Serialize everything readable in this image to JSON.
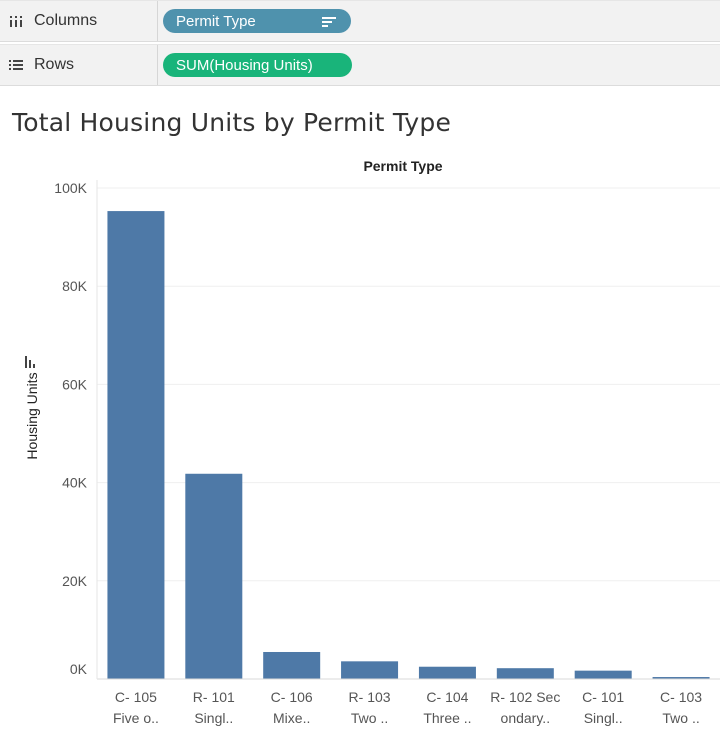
{
  "shelves": {
    "columns": {
      "label": "Columns",
      "pill": "Permit Type"
    },
    "rows": {
      "label": "Rows",
      "pill": "SUM(Housing Units)"
    }
  },
  "colors": {
    "bar": "#4e79a7",
    "dimension_pill": "#4f92ad",
    "measure_pill": "#19b47a"
  },
  "chart_data": {
    "type": "bar",
    "title": "Total Housing Units by Permit Type",
    "header": "Permit Type",
    "ylabel": "Housing Units",
    "ylim": [
      0,
      100000
    ],
    "yticks": [
      {
        "value": 0,
        "label": "0K"
      },
      {
        "value": 20000,
        "label": "20K"
      },
      {
        "value": 40000,
        "label": "40K"
      },
      {
        "value": 60000,
        "label": "60K"
      },
      {
        "value": 80000,
        "label": "80K"
      },
      {
        "value": 100000,
        "label": "100K"
      }
    ],
    "grid": true,
    "categories": [
      [
        "C- 105",
        "Five o.."
      ],
      [
        "R- 101",
        "Singl.."
      ],
      [
        "C- 106",
        "Mixe.."
      ],
      [
        "R- 103",
        "Two .."
      ],
      [
        "C- 104",
        "Three .."
      ],
      [
        "R- 102 Sec",
        "ondary.."
      ],
      [
        "C- 101",
        "Singl.."
      ],
      [
        "C- 103",
        "Two .."
      ]
    ],
    "values": [
      95300,
      41800,
      5500,
      3600,
      2500,
      2200,
      1700,
      400
    ]
  }
}
